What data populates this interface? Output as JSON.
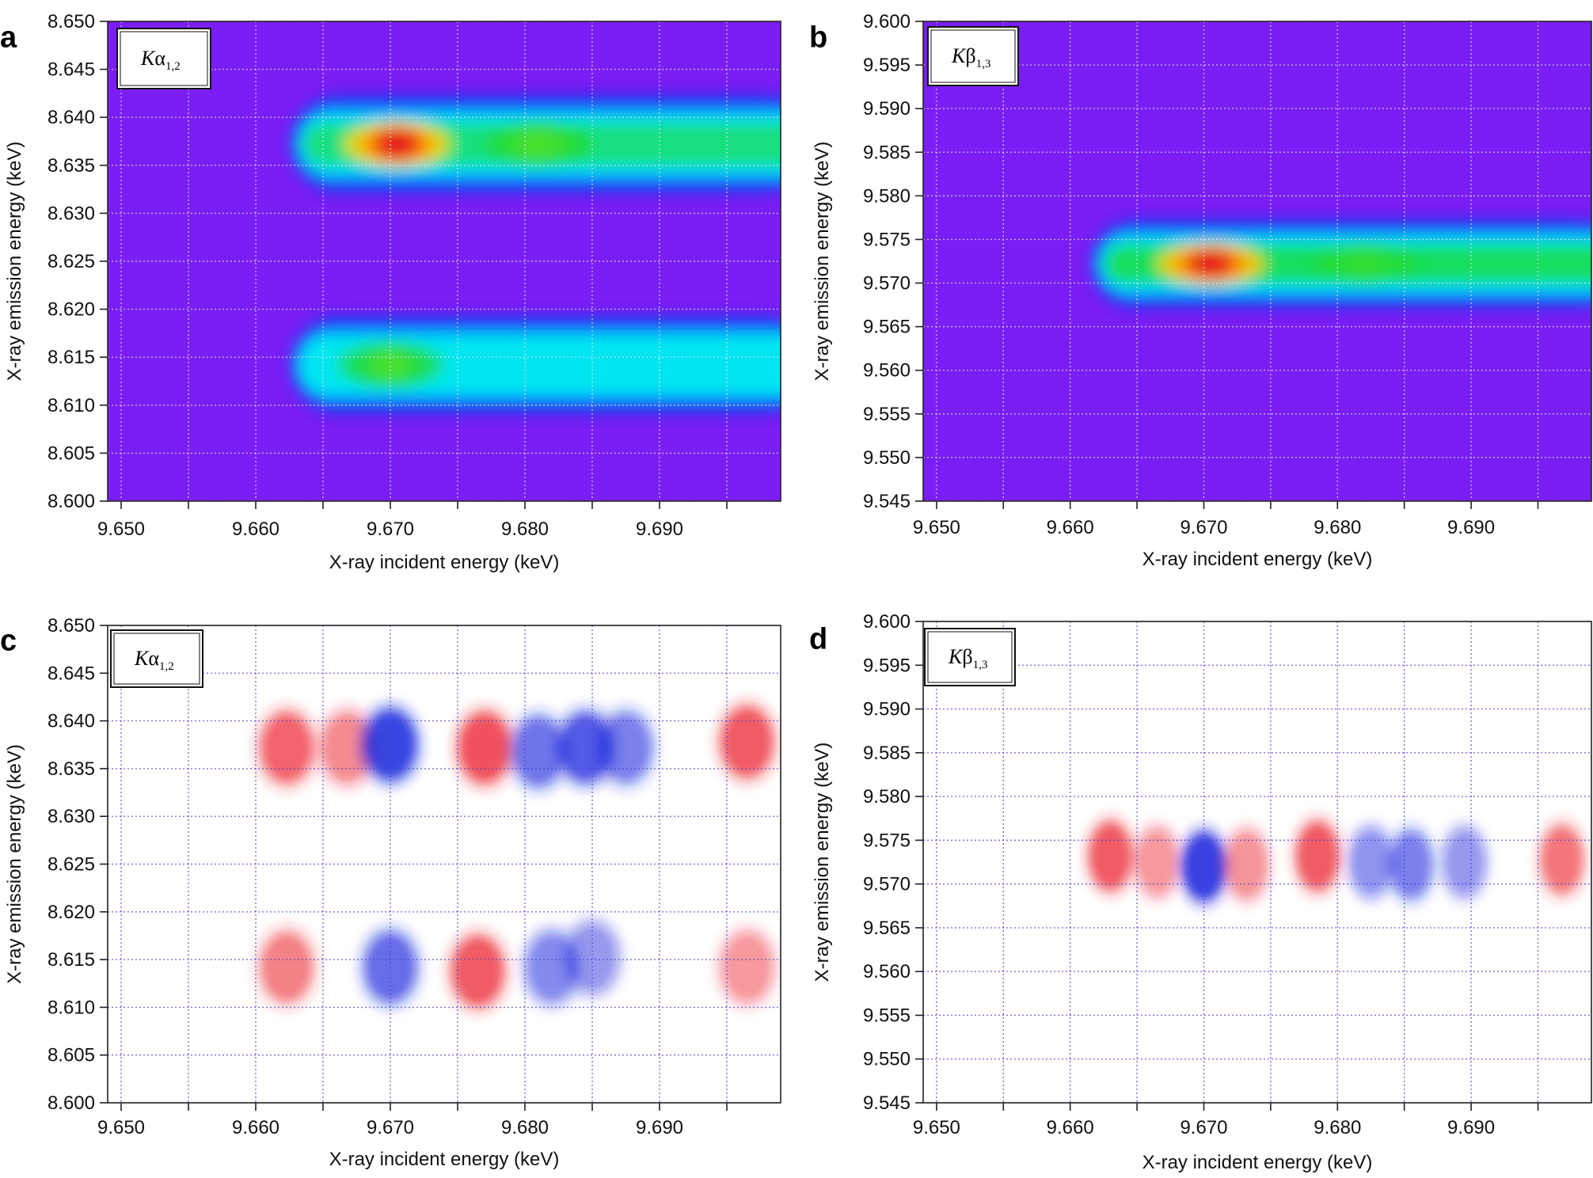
{
  "chart_data": [
    {
      "panel": "a",
      "type": "heatmap",
      "series_label": "Kα",
      "series_label_sub": "1,2",
      "xlabel": "X-ray incident energy (keV)",
      "ylabel": "X-ray emission energy (keV)",
      "xlim": [
        9.649,
        9.699
      ],
      "ylim": [
        8.6,
        8.65
      ],
      "xticks": [
        "9.650",
        "9.660",
        "9.670",
        "9.680",
        "9.690"
      ],
      "yticks": [
        "8.600",
        "8.605",
        "8.610",
        "8.615",
        "8.620",
        "8.625",
        "8.630",
        "8.635",
        "8.640",
        "8.645",
        "8.650"
      ],
      "colormap": "rainbow",
      "background": "#7b1ef5",
      "bands": [
        {
          "y": 8.6372,
          "x_start": 9.6625,
          "peaks": [
            {
              "x": 9.6705,
              "value": 1.0
            },
            {
              "x": 9.681,
              "value": 0.62
            }
          ],
          "plateau": 0.52
        },
        {
          "y": 8.6142,
          "x_start": 9.6625,
          "peaks": [
            {
              "x": 9.67,
              "value": 0.62
            }
          ],
          "plateau": 0.42
        }
      ]
    },
    {
      "panel": "b",
      "type": "heatmap",
      "series_label": "Kβ",
      "series_label_sub": "1,3",
      "xlabel": "X-ray incident energy (keV)",
      "ylabel": "X-ray emission energy (keV)",
      "xlim": [
        9.649,
        9.699
      ],
      "ylim": [
        9.545,
        9.6
      ],
      "xticks": [
        "9.650",
        "9.660",
        "9.670",
        "9.680",
        "9.690"
      ],
      "yticks": [
        "9.545",
        "9.550",
        "9.555",
        "9.560",
        "9.565",
        "9.570",
        "9.575",
        "9.580",
        "9.585",
        "9.590",
        "9.595",
        "9.600"
      ],
      "colormap": "rainbow",
      "background": "#7b1ef5",
      "bands": [
        {
          "y": 9.5722,
          "x_start": 9.6615,
          "peaks": [
            {
              "x": 9.6705,
              "value": 1.0
            },
            {
              "x": 9.682,
              "value": 0.6
            }
          ],
          "plateau": 0.55
        }
      ]
    },
    {
      "panel": "c",
      "type": "heatmap",
      "series_label": "Kα",
      "series_label_sub": "1,2",
      "xlabel": "X-ray incident energy (keV)",
      "ylabel": "X-ray emission energy (keV)",
      "xlim": [
        9.649,
        9.699
      ],
      "ylim": [
        8.6,
        8.65
      ],
      "xticks": [
        "9.650",
        "9.660",
        "9.670",
        "9.680",
        "9.690"
      ],
      "yticks": [
        "8.600",
        "8.605",
        "8.610",
        "8.615",
        "8.620",
        "8.625",
        "8.630",
        "8.635",
        "8.640",
        "8.645",
        "8.650"
      ],
      "colormap": "diverging red-white-blue",
      "blobs": [
        {
          "x": 9.6623,
          "y": 8.6372,
          "value": 0.75
        },
        {
          "x": 9.6668,
          "y": 8.6372,
          "value": 0.55
        },
        {
          "x": 9.67,
          "y": 8.6375,
          "value": -0.95
        },
        {
          "x": 9.677,
          "y": 8.6372,
          "value": 0.85
        },
        {
          "x": 9.681,
          "y": 8.6368,
          "value": -0.65
        },
        {
          "x": 9.6845,
          "y": 8.6372,
          "value": -0.8
        },
        {
          "x": 9.6875,
          "y": 8.6372,
          "value": -0.6
        },
        {
          "x": 9.6965,
          "y": 8.6378,
          "value": 0.8
        },
        {
          "x": 9.6623,
          "y": 8.6142,
          "value": 0.6
        },
        {
          "x": 9.67,
          "y": 8.6142,
          "value": -0.7
        },
        {
          "x": 9.6765,
          "y": 8.6138,
          "value": 0.8
        },
        {
          "x": 9.682,
          "y": 8.6142,
          "value": -0.55
        },
        {
          "x": 9.685,
          "y": 8.6152,
          "value": -0.45
        },
        {
          "x": 9.6965,
          "y": 8.6142,
          "value": 0.45
        }
      ]
    },
    {
      "panel": "d",
      "type": "heatmap",
      "series_label": "Kβ",
      "series_label_sub": "1,3",
      "xlabel": "X-ray incident energy (keV)",
      "ylabel": "X-ray emission energy (keV)",
      "xlim": [
        9.649,
        9.699
      ],
      "ylim": [
        9.545,
        9.6
      ],
      "xticks": [
        "9.650",
        "9.660",
        "9.670",
        "9.680",
        "9.690"
      ],
      "yticks": [
        "9.545",
        "9.550",
        "9.555",
        "9.560",
        "9.565",
        "9.570",
        "9.575",
        "9.580",
        "9.585",
        "9.590",
        "9.595",
        "9.600"
      ],
      "colormap": "diverging red-white-blue",
      "blobs": [
        {
          "x": 9.663,
          "y": 9.5732,
          "value": 0.8
        },
        {
          "x": 9.6665,
          "y": 9.5725,
          "value": 0.45
        },
        {
          "x": 9.67,
          "y": 9.572,
          "value": -1.0
        },
        {
          "x": 9.6732,
          "y": 9.5722,
          "value": 0.5
        },
        {
          "x": 9.6785,
          "y": 9.5732,
          "value": 0.8
        },
        {
          "x": 9.6825,
          "y": 9.5725,
          "value": -0.5
        },
        {
          "x": 9.6855,
          "y": 9.5722,
          "value": -0.6
        },
        {
          "x": 9.6895,
          "y": 9.5725,
          "value": -0.45
        },
        {
          "x": 9.6968,
          "y": 9.5728,
          "value": 0.65
        }
      ]
    }
  ]
}
